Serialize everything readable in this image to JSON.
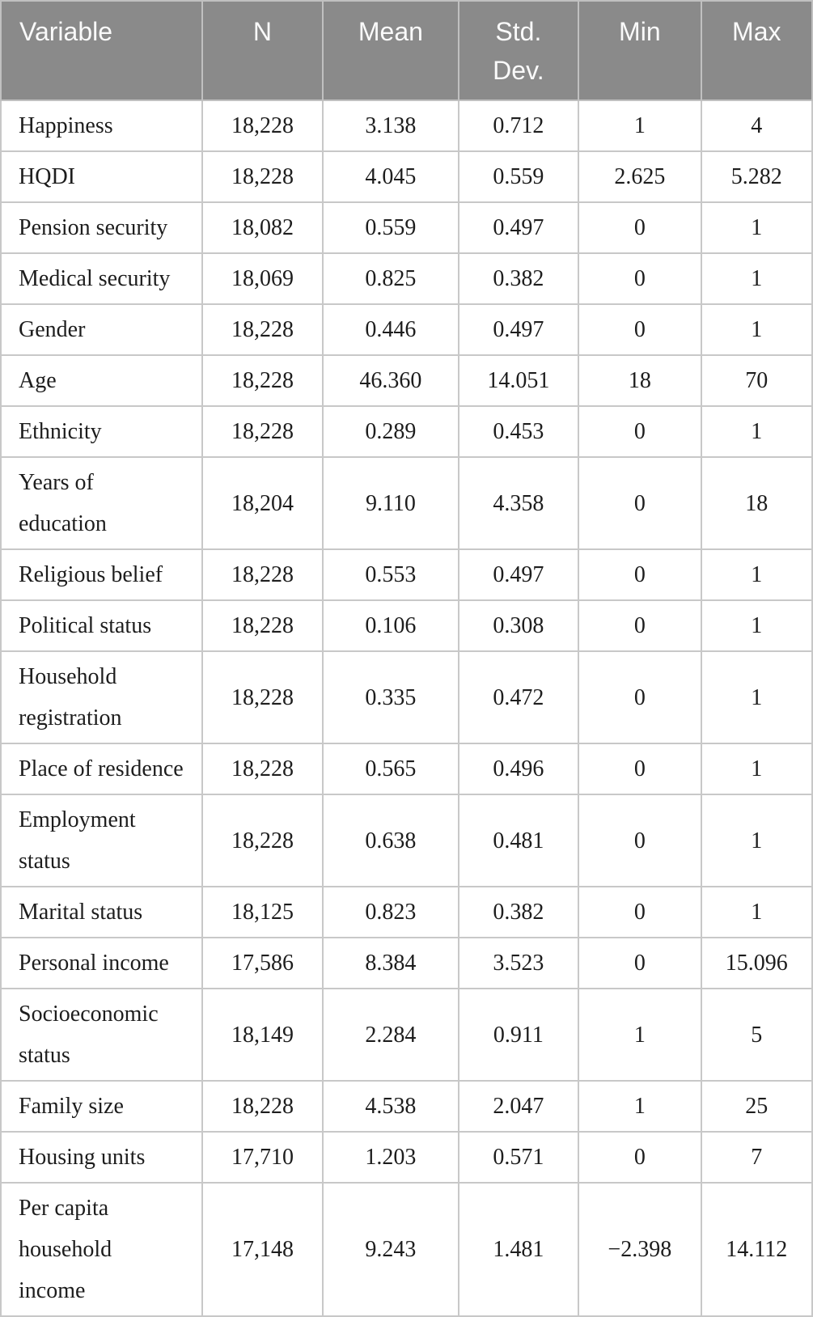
{
  "table": {
    "name": "descriptive-statistics-table",
    "columns": [
      "Variable",
      "N",
      "Mean",
      "Std.\nDev.",
      "Min",
      "Max"
    ],
    "rows": [
      [
        "Happiness",
        "18,228",
        "3.138",
        "0.712",
        "1",
        "4"
      ],
      [
        "HQDI",
        "18,228",
        "4.045",
        "0.559",
        "2.625",
        "5.282"
      ],
      [
        "Pension security",
        "18,082",
        "0.559",
        "0.497",
        "0",
        "1"
      ],
      [
        "Medical security",
        "18,069",
        "0.825",
        "0.382",
        "0",
        "1"
      ],
      [
        "Gender",
        "18,228",
        "0.446",
        "0.497",
        "0",
        "1"
      ],
      [
        "Age",
        "18,228",
        "46.360",
        "14.051",
        "18",
        "70"
      ],
      [
        "Ethnicity",
        "18,228",
        "0.289",
        "0.453",
        "0",
        "1"
      ],
      [
        "Years of\neducation",
        "18,204",
        "9.110",
        "4.358",
        "0",
        "18"
      ],
      [
        "Religious belief",
        "18,228",
        "0.553",
        "0.497",
        "0",
        "1"
      ],
      [
        "Political status",
        "18,228",
        "0.106",
        "0.308",
        "0",
        "1"
      ],
      [
        "Household\nregistration",
        "18,228",
        "0.335",
        "0.472",
        "0",
        "1"
      ],
      [
        "Place of residence",
        "18,228",
        "0.565",
        "0.496",
        "0",
        "1"
      ],
      [
        "Employment\nstatus",
        "18,228",
        "0.638",
        "0.481",
        "0",
        "1"
      ],
      [
        "Marital status",
        "18,125",
        "0.823",
        "0.382",
        "0",
        "1"
      ],
      [
        "Personal income",
        "17,586",
        "8.384",
        "3.523",
        "0",
        "15.096"
      ],
      [
        "Socioeconomic\nstatus",
        "18,149",
        "2.284",
        "0.911",
        "1",
        "5"
      ],
      [
        "Family size",
        "18,228",
        "4.538",
        "2.047",
        "1",
        "25"
      ],
      [
        "Housing units",
        "17,710",
        "1.203",
        "0.571",
        "0",
        "7"
      ],
      [
        "Per capita\nhousehold\nincome",
        "17,148",
        "9.243",
        "1.481",
        "−2.398",
        "14.112"
      ]
    ],
    "colors": {
      "header_background": "#8a8a8a",
      "header_text": "#fafafa",
      "body_text": "#1d1d1d",
      "border": "#c8c8c8"
    }
  }
}
